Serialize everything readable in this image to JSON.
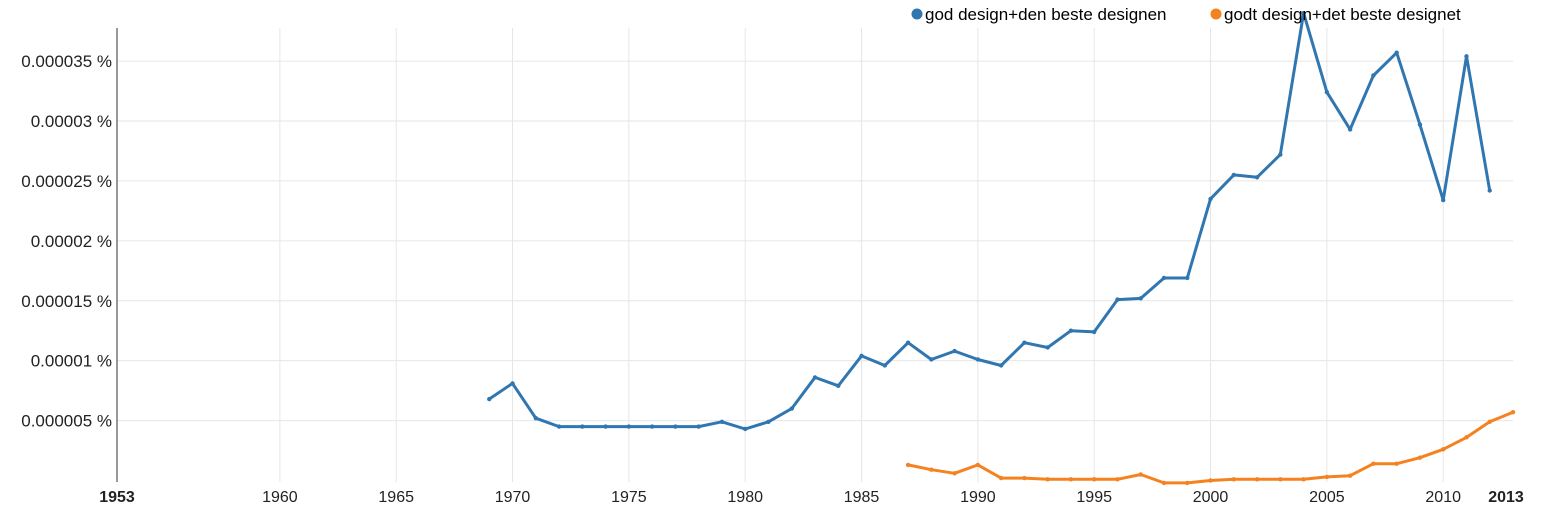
{
  "chart_data": {
    "type": "line",
    "title": "",
    "xlabel": "",
    "ylabel": "",
    "xlim": [
      1953,
      2013
    ],
    "ylim": [
      0,
      3.75e-05
    ],
    "grid": true,
    "legend_position": "top-right",
    "y_ticks": [
      {
        "value": 5e-06,
        "label": "0.000005 %"
      },
      {
        "value": 1e-05,
        "label": "0.00001 %"
      },
      {
        "value": 1.5e-05,
        "label": "0.000015 %"
      },
      {
        "value": 2e-05,
        "label": "0.00002 %"
      },
      {
        "value": 2.5e-05,
        "label": "0.000025 %"
      },
      {
        "value": 3e-05,
        "label": "0.00003 %"
      },
      {
        "value": 3.5e-05,
        "label": "0.000035 %"
      }
    ],
    "x_ticks": [
      {
        "value": 1953,
        "label": "1953",
        "bold": true
      },
      {
        "value": 1960,
        "label": "1960",
        "bold": false
      },
      {
        "value": 1965,
        "label": "1965",
        "bold": false
      },
      {
        "value": 1970,
        "label": "1970",
        "bold": false
      },
      {
        "value": 1975,
        "label": "1975",
        "bold": false
      },
      {
        "value": 1980,
        "label": "1980",
        "bold": false
      },
      {
        "value": 1985,
        "label": "1985",
        "bold": false
      },
      {
        "value": 1990,
        "label": "1990",
        "bold": false
      },
      {
        "value": 1995,
        "label": "1995",
        "bold": false
      },
      {
        "value": 2000,
        "label": "2000",
        "bold": false
      },
      {
        "value": 2005,
        "label": "2005",
        "bold": false
      },
      {
        "value": 2010,
        "label": "2010",
        "bold": false
      },
      {
        "value": 2013,
        "label": "2013",
        "bold": true
      }
    ],
    "series": [
      {
        "name": "god design+den beste designen",
        "color": "#3077b1",
        "x": [
          1969,
          1970,
          1971,
          1972,
          1973,
          1974,
          1975,
          1976,
          1977,
          1978,
          1979,
          1980,
          1981,
          1982,
          1983,
          1984,
          1985,
          1986,
          1987,
          1988,
          1989,
          1990,
          1991,
          1992,
          1993,
          1994,
          1995,
          1996,
          1997,
          1998,
          1999,
          2000,
          2001,
          2002,
          2003,
          2004,
          2005,
          2006,
          2007,
          2008,
          2009,
          2010,
          2011,
          2012
        ],
        "y": [
          6.8e-06,
          8.1e-06,
          5.2e-06,
          4.5e-06,
          4.5e-06,
          4.5e-06,
          4.5e-06,
          4.5e-06,
          4.5e-06,
          4.5e-06,
          4.9e-06,
          4.3e-06,
          4.9e-06,
          6e-06,
          8.6e-06,
          7.9e-06,
          1.04e-05,
          9.6e-06,
          1.15e-05,
          1.01e-05,
          1.08e-05,
          1.01e-05,
          9.6e-06,
          1.15e-05,
          1.11e-05,
          1.25e-05,
          1.24e-05,
          1.51e-05,
          1.52e-05,
          1.69e-05,
          1.69e-05,
          2.35e-05,
          2.55e-05,
          2.53e-05,
          2.72e-05,
          3.9e-05,
          3.24e-05,
          2.93e-05,
          3.38e-05,
          3.57e-05,
          2.97e-05,
          2.34e-05,
          3.54e-05,
          2.42e-05
        ]
      },
      {
        "name": "godt design+det beste designet",
        "color": "#f58220",
        "x": [
          1987,
          1988,
          1989,
          1990,
          1991,
          1992,
          1993,
          1994,
          1995,
          1996,
          1997,
          1998,
          1999,
          2000,
          2001,
          2002,
          2003,
          2004,
          2005,
          2006,
          2007,
          2008,
          2009,
          2010,
          2011,
          2012,
          2013
        ],
        "y": [
          1.3e-06,
          9e-07,
          6e-07,
          1.3e-06,
          2e-07,
          2e-07,
          1e-07,
          1e-07,
          1e-07,
          1e-07,
          5e-07,
          -2e-07,
          -2e-07,
          0.0,
          1e-07,
          1e-07,
          1e-07,
          1e-07,
          3e-07,
          4e-07,
          1.4e-06,
          1.4e-06,
          1.9e-06,
          2.6e-06,
          3.6e-06,
          4.9e-06,
          5.7e-06
        ]
      }
    ]
  }
}
